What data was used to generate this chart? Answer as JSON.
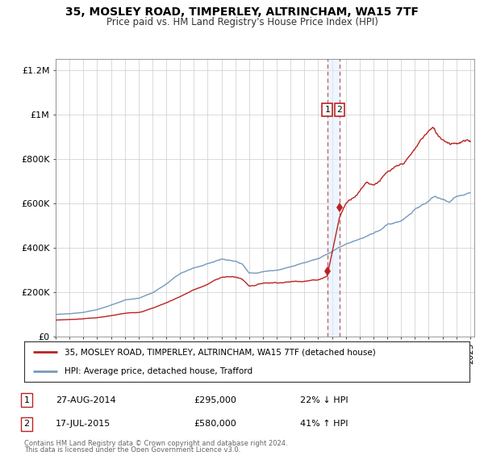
{
  "title": "35, MOSLEY ROAD, TIMPERLEY, ALTRINCHAM, WA15 7TF",
  "subtitle": "Price paid vs. HM Land Registry's House Price Index (HPI)",
  "x_start_year": 1995,
  "x_end_year": 2025,
  "y_min": 0,
  "y_max": 1200000,
  "sale1_date": 2014.65,
  "sale1_price": 295000,
  "sale2_date": 2015.54,
  "sale2_price": 580000,
  "sale1_text": "27-AUG-2014",
  "sale1_amount": "£295,000",
  "sale1_hpi": "22% ↓ HPI",
  "sale2_text": "17-JUL-2015",
  "sale2_amount": "£580,000",
  "sale2_hpi": "41% ↑ HPI",
  "red_color": "#bb2222",
  "blue_color": "#7799bb",
  "legend_line1": "35, MOSLEY ROAD, TIMPERLEY, ALTRINCHAM, WA15 7TF (detached house)",
  "legend_line2": "HPI: Average price, detached house, Trafford",
  "footnote1": "Contains HM Land Registry data © Crown copyright and database right 2024.",
  "footnote2": "This data is licensed under the Open Government Licence v3.0.",
  "ytick_labels": [
    "£0",
    "£200K",
    "£400K",
    "£600K",
    "£800K",
    "£1M",
    "£1.2M"
  ],
  "ytick_values": [
    0,
    200000,
    400000,
    600000,
    800000,
    1000000,
    1200000
  ],
  "red_key_x": [
    1995,
    1996,
    1997,
    1998,
    1999,
    2000,
    2001,
    2002,
    2003,
    2004,
    2005,
    2006,
    2007,
    2008,
    2008.5,
    2009,
    2009.5,
    2010,
    2011,
    2012,
    2013,
    2014,
    2014.65,
    2015.54,
    2016,
    2017,
    2017.5,
    2018,
    2018.5,
    2019,
    2020,
    2020.5,
    2021,
    2021.5,
    2022,
    2022.3,
    2022.7,
    2023,
    2023.5,
    2024,
    2024.5,
    2025
  ],
  "red_key_y": [
    75000,
    78000,
    82000,
    87000,
    95000,
    105000,
    110000,
    130000,
    155000,
    185000,
    215000,
    240000,
    275000,
    275000,
    265000,
    235000,
    240000,
    250000,
    255000,
    260000,
    268000,
    275000,
    295000,
    580000,
    650000,
    720000,
    770000,
    760000,
    790000,
    820000,
    840000,
    870000,
    910000,
    960000,
    1000000,
    1010000,
    970000,
    960000,
    950000,
    960000,
    970000,
    960000
  ],
  "blue_key_x": [
    1995,
    1996,
    1997,
    1998,
    1999,
    2000,
    2001,
    2002,
    2003,
    2004,
    2005,
    2006,
    2007,
    2008,
    2008.5,
    2009,
    2009.5,
    2010,
    2011,
    2012,
    2013,
    2014,
    2015,
    2016,
    2017,
    2018,
    2019,
    2020,
    2021,
    2022,
    2022.5,
    2023,
    2023.5,
    2024,
    2024.5,
    2025
  ],
  "blue_key_y": [
    100000,
    102000,
    108000,
    120000,
    140000,
    165000,
    175000,
    200000,
    240000,
    290000,
    320000,
    340000,
    360000,
    345000,
    330000,
    290000,
    288000,
    295000,
    305000,
    318000,
    335000,
    360000,
    390000,
    430000,
    460000,
    490000,
    530000,
    545000,
    595000,
    635000,
    650000,
    635000,
    625000,
    645000,
    655000,
    670000
  ]
}
